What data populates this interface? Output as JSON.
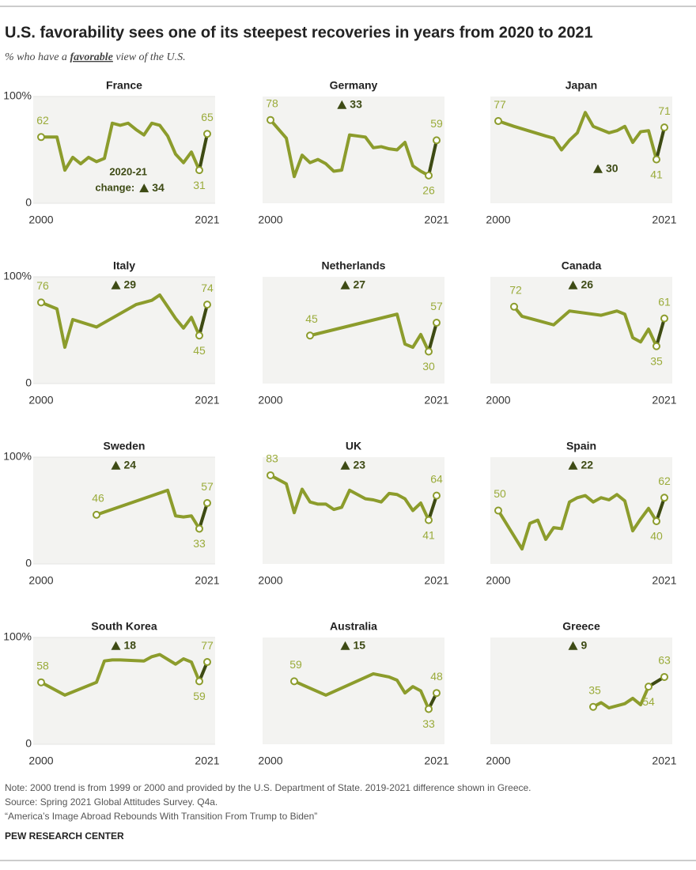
{
  "title": "U.S. favorability sees one of its steepest recoveries in years from 2020 to 2021",
  "subtitle": {
    "before": "% who have a ",
    "emphasis": "favorable",
    "after": " view of the U.S."
  },
  "notes": [
    "Note: 2000 trend is from 1999 or 2000 and provided by the U.S. Department of State. 2019-2021 difference shown in Greece.",
    "Source: Spring 2021 Global Attitudes Survey. Q4a.",
    "“America’s Image Abroad Rebounds With Transition From Trump to Biden”"
  ],
  "brand": "PEW RESEARCH CENTER",
  "chart_data": [
    {
      "type": "line",
      "title": "France",
      "color": "#8c9c2c",
      "highlight_color": "#3d4a14",
      "xlim": [
        2000,
        2021
      ],
      "xticks": [
        2000,
        2021
      ],
      "ylim": [
        0,
        100
      ],
      "yticks": [
        0,
        {
          "value": 100,
          "label": "100%"
        }
      ],
      "x": [
        2000,
        2002,
        2003,
        2004,
        2005,
        2006,
        2007,
        2008,
        2009,
        2010,
        2011,
        2012,
        2013,
        2014,
        2015,
        2016,
        2017,
        2018,
        2019,
        2020,
        2021
      ],
      "values": [
        62,
        62,
        31,
        43,
        37,
        43,
        39,
        42,
        75,
        73,
        75,
        69,
        64,
        75,
        73,
        63,
        46,
        38,
        48,
        31,
        65
      ],
      "change": 34,
      "change_caption": [
        "2020-21",
        "change:"
      ]
    },
    {
      "type": "line",
      "title": "Germany",
      "color": "#8c9c2c",
      "highlight_color": "#3d4a14",
      "xlim": [
        2000,
        2021
      ],
      "xticks": [
        2000,
        2021
      ],
      "ylim": [
        0,
        100
      ],
      "x": [
        2000,
        2002,
        2003,
        2004,
        2005,
        2006,
        2007,
        2008,
        2009,
        2010,
        2011,
        2012,
        2013,
        2014,
        2015,
        2016,
        2017,
        2018,
        2019,
        2020,
        2021
      ],
      "values": [
        78,
        61,
        25,
        45,
        38,
        41,
        37,
        30,
        31,
        64,
        63,
        62,
        52,
        53,
        51,
        50,
        57,
        35,
        30,
        26,
        59
      ],
      "change": 33
    },
    {
      "type": "line",
      "title": "Japan",
      "color": "#8c9c2c",
      "highlight_color": "#3d4a14",
      "xlim": [
        2000,
        2021
      ],
      "xticks": [
        2000,
        2021
      ],
      "ylim": [
        0,
        100
      ],
      "x": [
        2000,
        2002,
        2006,
        2007,
        2008,
        2009,
        2010,
        2011,
        2012,
        2013,
        2014,
        2015,
        2016,
        2017,
        2018,
        2019,
        2020,
        2021
      ],
      "values": [
        77,
        72,
        63,
        61,
        50,
        59,
        66,
        85,
        72,
        69,
        66,
        68,
        72,
        57,
        67,
        68,
        41,
        71
      ],
      "change": 30
    },
    {
      "type": "line",
      "title": "Italy",
      "color": "#8c9c2c",
      "highlight_color": "#3d4a14",
      "xlim": [
        2000,
        2021
      ],
      "xticks": [
        2000,
        2021
      ],
      "ylim": [
        0,
        100
      ],
      "yticks": [
        0,
        {
          "value": 100,
          "label": "100%"
        }
      ],
      "x": [
        2000,
        2002,
        2003,
        2004,
        2007,
        2012,
        2013,
        2014,
        2015,
        2016,
        2017,
        2018,
        2019,
        2020,
        2021
      ],
      "values": [
        76,
        70,
        34,
        60,
        53,
        74,
        76,
        78,
        83,
        72,
        61,
        52,
        62,
        45,
        74
      ],
      "change": 29
    },
    {
      "type": "line",
      "title": "Netherlands",
      "color": "#8c9c2c",
      "highlight_color": "#3d4a14",
      "xlim": [
        2000,
        2021
      ],
      "xticks": [
        2000,
        2021
      ],
      "ylim": [
        0,
        100
      ],
      "x": [
        2005,
        2016,
        2017,
        2018,
        2019,
        2020,
        2021
      ],
      "values": [
        45,
        65,
        37,
        34,
        46,
        30,
        57
      ],
      "change": 27
    },
    {
      "type": "line",
      "title": "Canada",
      "color": "#8c9c2c",
      "highlight_color": "#3d4a14",
      "xlim": [
        2000,
        2021
      ],
      "xticks": [
        2000,
        2021
      ],
      "ylim": [
        0,
        100
      ],
      "x": [
        2002,
        2003,
        2005,
        2007,
        2009,
        2013,
        2015,
        2016,
        2017,
        2018,
        2019,
        2020,
        2021
      ],
      "values": [
        72,
        63,
        59,
        55,
        68,
        64,
        68,
        65,
        43,
        39,
        51,
        35,
        61
      ],
      "change": 26
    },
    {
      "type": "line",
      "title": "Sweden",
      "color": "#8c9c2c",
      "highlight_color": "#3d4a14",
      "xlim": [
        2000,
        2021
      ],
      "xticks": [
        2000,
        2021
      ],
      "ylim": [
        0,
        100
      ],
      "yticks": [
        0,
        {
          "value": 100,
          "label": "100%"
        }
      ],
      "x": [
        2007,
        2016,
        2017,
        2018,
        2019,
        2020,
        2021
      ],
      "values": [
        46,
        69,
        45,
        44,
        45,
        33,
        57
      ],
      "change": 24
    },
    {
      "type": "line",
      "title": "UK",
      "color": "#8c9c2c",
      "highlight_color": "#3d4a14",
      "xlim": [
        2000,
        2021
      ],
      "xticks": [
        2000,
        2021
      ],
      "ylim": [
        0,
        100
      ],
      "x": [
        2000,
        2002,
        2003,
        2004,
        2005,
        2006,
        2007,
        2008,
        2009,
        2010,
        2011,
        2012,
        2013,
        2014,
        2015,
        2016,
        2017,
        2018,
        2019,
        2020,
        2021
      ],
      "values": [
        83,
        75,
        48,
        70,
        58,
        56,
        56,
        51,
        53,
        69,
        65,
        61,
        60,
        58,
        66,
        65,
        61,
        50,
        57,
        41,
        64
      ],
      "change": 23
    },
    {
      "type": "line",
      "title": "Spain",
      "color": "#8c9c2c",
      "highlight_color": "#3d4a14",
      "xlim": [
        2000,
        2021
      ],
      "xticks": [
        2000,
        2021
      ],
      "ylim": [
        0,
        100
      ],
      "x": [
        2000,
        2003,
        2004,
        2005,
        2006,
        2007,
        2008,
        2009,
        2010,
        2011,
        2012,
        2013,
        2014,
        2015,
        2016,
        2017,
        2018,
        2019,
        2020,
        2021
      ],
      "values": [
        50,
        14,
        38,
        41,
        23,
        34,
        33,
        58,
        62,
        64,
        58,
        62,
        60,
        65,
        59,
        31,
        42,
        52,
        40,
        62
      ],
      "change": 22
    },
    {
      "type": "line",
      "title": "South Korea",
      "color": "#8c9c2c",
      "highlight_color": "#3d4a14",
      "xlim": [
        2000,
        2021
      ],
      "xticks": [
        2000,
        2021
      ],
      "ylim": [
        0,
        100
      ],
      "yticks": [
        0,
        {
          "value": 100,
          "label": "100%"
        }
      ],
      "x": [
        2000,
        2003,
        2007,
        2008,
        2009,
        2010,
        2013,
        2014,
        2015,
        2017,
        2018,
        2019,
        2020,
        2021
      ],
      "values": [
        58,
        46,
        58,
        78,
        79,
        79,
        78,
        82,
        84,
        75,
        80,
        77,
        59,
        77
      ],
      "change": 18
    },
    {
      "type": "line",
      "title": "Australia",
      "color": "#8c9c2c",
      "highlight_color": "#3d4a14",
      "xlim": [
        2000,
        2021
      ],
      "xticks": [
        2000,
        2021
      ],
      "ylim": [
        0,
        100
      ],
      "x": [
        2003,
        2007,
        2013,
        2015,
        2016,
        2017,
        2018,
        2019,
        2020,
        2021
      ],
      "values": [
        59,
        46,
        66,
        63,
        60,
        48,
        54,
        50,
        33,
        48
      ],
      "change": 15
    },
    {
      "type": "line",
      "title": "Greece",
      "color": "#8c9c2c",
      "highlight_color": "#3d4a14",
      "xlim": [
        2000,
        2021
      ],
      "xticks": [
        2000,
        2021
      ],
      "ylim": [
        0,
        100
      ],
      "x": [
        2012,
        2013,
        2014,
        2016,
        2017,
        2018,
        2019,
        2021
      ],
      "values": [
        35,
        39,
        34,
        38,
        43,
        37,
        54,
        63
      ],
      "change": 9
    }
  ]
}
